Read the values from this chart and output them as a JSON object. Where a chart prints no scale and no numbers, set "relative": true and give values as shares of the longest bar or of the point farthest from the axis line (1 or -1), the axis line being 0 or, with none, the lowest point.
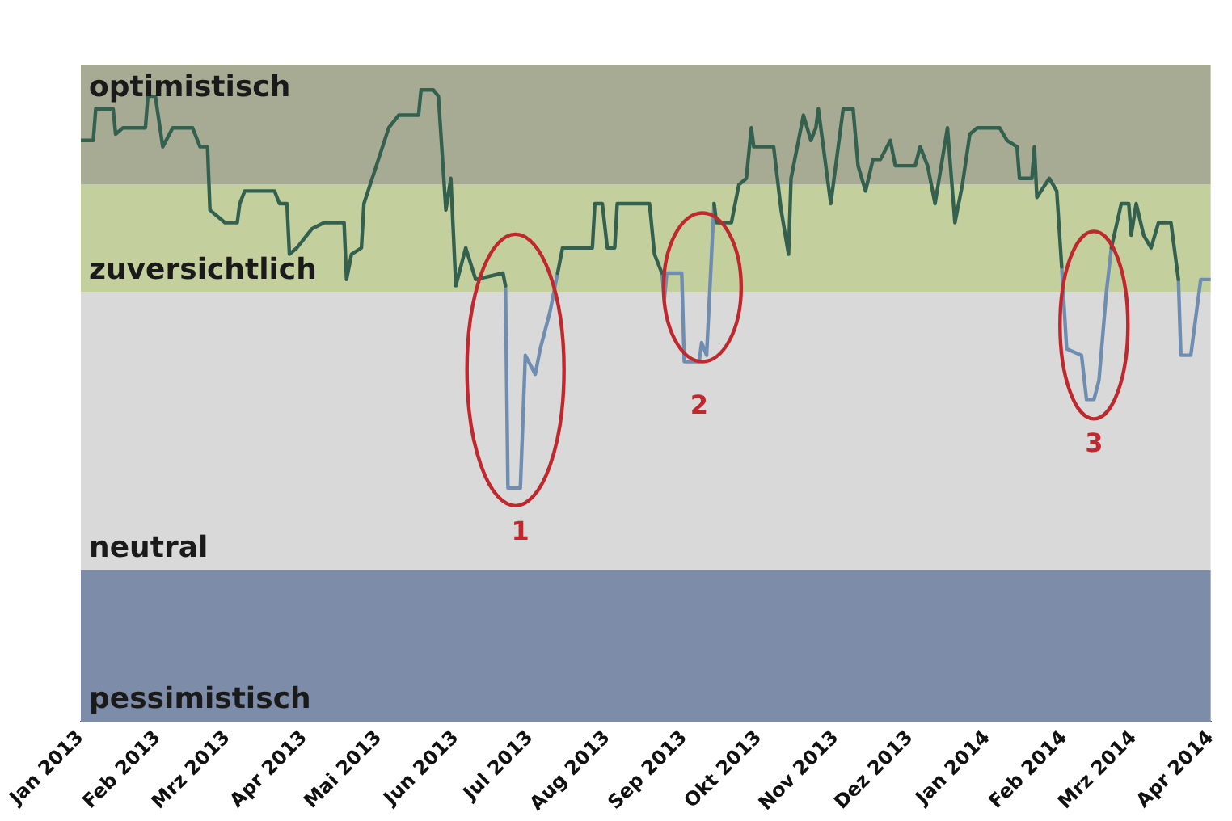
{
  "chart_data": {
    "type": "line",
    "relative": true,
    "legend": false,
    "grid": false,
    "marker": "none",
    "line_style": "solid",
    "x": [
      "2013-01-01",
      "2013-01-06",
      "2013-01-07",
      "2013-01-14",
      "2013-01-15",
      "2013-01-18",
      "2013-01-27",
      "2013-01-28",
      "2013-01-31",
      "2013-02-03",
      "2013-02-07",
      "2013-02-15",
      "2013-02-18",
      "2013-02-21",
      "2013-02-22",
      "2013-02-28",
      "2013-03-05",
      "2013-03-06",
      "2013-03-08",
      "2013-03-20",
      "2013-03-22",
      "2013-03-25",
      "2013-03-26",
      "2013-03-29",
      "2013-04-04",
      "2013-04-09",
      "2013-04-17",
      "2013-04-18",
      "2013-04-20",
      "2013-04-24",
      "2013-04-25",
      "2013-04-30",
      "2013-05-05",
      "2013-05-09",
      "2013-05-17",
      "2013-05-18",
      "2013-05-23",
      "2013-05-25",
      "2013-05-28",
      "2013-05-30",
      "2013-06-01",
      "2013-06-05",
      "2013-06-09",
      "2013-06-20",
      "2013-06-21",
      "2013-06-22",
      "2013-06-27",
      "2013-06-29",
      "2013-07-03",
      "2013-07-05",
      "2013-07-09",
      "2013-07-12",
      "2013-07-14",
      "2013-07-26",
      "2013-07-27",
      "2013-07-30",
      "2013-08-01",
      "2013-08-04",
      "2013-08-05",
      "2013-08-18",
      "2013-08-20",
      "2013-08-23",
      "2013-08-24",
      "2013-08-25",
      "2013-08-31",
      "2013-09-01",
      "2013-09-07",
      "2013-09-08",
      "2013-09-10",
      "2013-09-13",
      "2013-09-14",
      "2013-09-20",
      "2013-09-23",
      "2013-09-26",
      "2013-09-28",
      "2013-09-29",
      "2013-10-07",
      "2013-10-10",
      "2013-10-13",
      "2013-10-14",
      "2013-10-19",
      "2013-10-22",
      "2013-10-24",
      "2013-10-25",
      "2013-10-30",
      "2013-11-02",
      "2013-11-04",
      "2013-11-08",
      "2013-11-10",
      "2013-11-13",
      "2013-11-16",
      "2013-11-19",
      "2013-11-23",
      "2013-11-25",
      "2013-12-03",
      "2013-12-05",
      "2013-12-08",
      "2013-12-11",
      "2013-12-16",
      "2013-12-19",
      "2013-12-22",
      "2013-12-25",
      "2013-12-28",
      "2014-01-06",
      "2014-01-09",
      "2014-01-13",
      "2014-01-14",
      "2014-01-19",
      "2014-01-20",
      "2014-01-21",
      "2014-01-26",
      "2014-01-29",
      "2014-01-31",
      "2014-02-02",
      "2014-02-08",
      "2014-02-10",
      "2014-02-13",
      "2014-02-15",
      "2014-02-18",
      "2014-02-20",
      "2014-02-24",
      "2014-02-27",
      "2014-02-28",
      "2014-03-02",
      "2014-03-05",
      "2014-03-08",
      "2014-03-11",
      "2014-03-16",
      "2014-03-19",
      "2014-03-20",
      "2014-03-24",
      "2014-03-28",
      "2014-04-01"
    ],
    "series": [
      {
        "color": "#33604f",
        "values": [
          0.92,
          0.92,
          0.97,
          0.97,
          0.93,
          0.94,
          0.94,
          0.99,
          0.99,
          0.91,
          0.94,
          0.94,
          0.91,
          0.91,
          0.81,
          0.79,
          0.79,
          0.82,
          0.84,
          0.84,
          0.82,
          0.82,
          0.74,
          0.75,
          0.78,
          0.79,
          0.79,
          0.7,
          0.74,
          0.75,
          0.82,
          0.88,
          0.94,
          0.96,
          0.96,
          1,
          1,
          0.99,
          0.81,
          0.86,
          0.69,
          0.75,
          0.7,
          0.71,
          0.69,
          null,
          null,
          null,
          null,
          null,
          null,
          0.71,
          0.75,
          0.75,
          0.82,
          0.82,
          0.75,
          0.75,
          0.82,
          0.82,
          0.74,
          0.71,
          null,
          null,
          null,
          null,
          null,
          null,
          null,
          0.82,
          0.79,
          0.79,
          0.85,
          0.86,
          0.94,
          0.91,
          0.91,
          0.81,
          0.74,
          0.86,
          0.96,
          0.92,
          0.94,
          0.97,
          0.82,
          0.91,
          0.97,
          0.97,
          0.88,
          0.84,
          0.89,
          0.89,
          0.92,
          0.88,
          0.88,
          0.91,
          0.88,
          0.82,
          0.94,
          0.79,
          0.85,
          0.93,
          0.94,
          0.94,
          0.92,
          0.91,
          0.86,
          0.86,
          0.91,
          0.83,
          0.86,
          0.84,
          0.72,
          null,
          null,
          null,
          null,
          null,
          null,
          0.75,
          0.82,
          0.82,
          0.77,
          0.82,
          0.77,
          0.75,
          0.79,
          0.79,
          0.7,
          null,
          null,
          null,
          null
        ]
      },
      {
        "color": "#6f8db0",
        "values": [
          null,
          null,
          null,
          null,
          null,
          null,
          null,
          null,
          null,
          null,
          null,
          null,
          null,
          null,
          null,
          null,
          null,
          null,
          null,
          null,
          null,
          null,
          null,
          null,
          null,
          null,
          null,
          null,
          null,
          null,
          null,
          null,
          null,
          null,
          null,
          null,
          null,
          null,
          null,
          null,
          null,
          null,
          null,
          null,
          0.69,
          0.37,
          0.37,
          0.58,
          0.55,
          0.59,
          0.65,
          0.71,
          null,
          null,
          null,
          null,
          null,
          null,
          null,
          null,
          null,
          0.71,
          0.67,
          0.71,
          0.71,
          0.57,
          0.57,
          0.6,
          0.58,
          0.82,
          null,
          null,
          null,
          null,
          null,
          null,
          null,
          null,
          null,
          null,
          null,
          null,
          null,
          null,
          null,
          null,
          null,
          null,
          null,
          null,
          null,
          null,
          null,
          null,
          null,
          null,
          null,
          null,
          null,
          null,
          null,
          null,
          null,
          null,
          null,
          null,
          null,
          null,
          null,
          null,
          null,
          null,
          0.72,
          0.59,
          0.58,
          0.51,
          0.51,
          0.54,
          0.68,
          0.75,
          null,
          null,
          null,
          null,
          null,
          null,
          null,
          null,
          0.7,
          0.58,
          0.58,
          0.7,
          0.7
        ]
      }
    ],
    "xlim": [
      "2013-01-01",
      "2014-04-01"
    ],
    "xticks": [
      {
        "value": "2013-01",
        "label": "Jan 2013"
      },
      {
        "value": "2013-02",
        "label": "Feb 2013"
      },
      {
        "value": "2013-03",
        "label": "Mrz 2013"
      },
      {
        "value": "2013-04",
        "label": "Apr 2013"
      },
      {
        "value": "2013-05",
        "label": "Mai 2013"
      },
      {
        "value": "2013-06",
        "label": "Jun 2013"
      },
      {
        "value": "2013-07",
        "label": "Jul 2013"
      },
      {
        "value": "2013-08",
        "label": "Aug 2013"
      },
      {
        "value": "2013-09",
        "label": "Sep 2013"
      },
      {
        "value": "2013-10",
        "label": "Okt 2013"
      },
      {
        "value": "2013-11",
        "label": "Nov 2013"
      },
      {
        "value": "2013-12",
        "label": "Dez 2013"
      },
      {
        "value": "2014-01",
        "label": "Jan 2014"
      },
      {
        "value": "2014-02",
        "label": "Feb 2014"
      },
      {
        "value": "2014-03",
        "label": "Mrz 2014"
      },
      {
        "value": "2014-04",
        "label": "Apr 2014"
      }
    ],
    "bands": [
      {
        "axis": "y",
        "from": 0,
        "to": 0.24,
        "label": "pessimistisch",
        "color": "#7d8ca8"
      },
      {
        "axis": "y",
        "from": 0.24,
        "to": 0.68,
        "label": "neutral",
        "color": "#d9d9d9"
      },
      {
        "axis": "y",
        "from": 0.68,
        "to": 0.85,
        "label": "zuversichtlich",
        "color": "#c3d09e"
      },
      {
        "axis": "y",
        "from": 0.85,
        "to": 1.04,
        "label": "optimistisch",
        "color": "#a8ab93"
      }
    ],
    "annotations": [
      {
        "text": "1",
        "x": "2013-06-27",
        "y": 0.37
      },
      {
        "text": "2",
        "x": "2013-09-07",
        "y": 0.57
      },
      {
        "text": "3",
        "x": "2014-02-13",
        "y": 0.51
      }
    ]
  }
}
